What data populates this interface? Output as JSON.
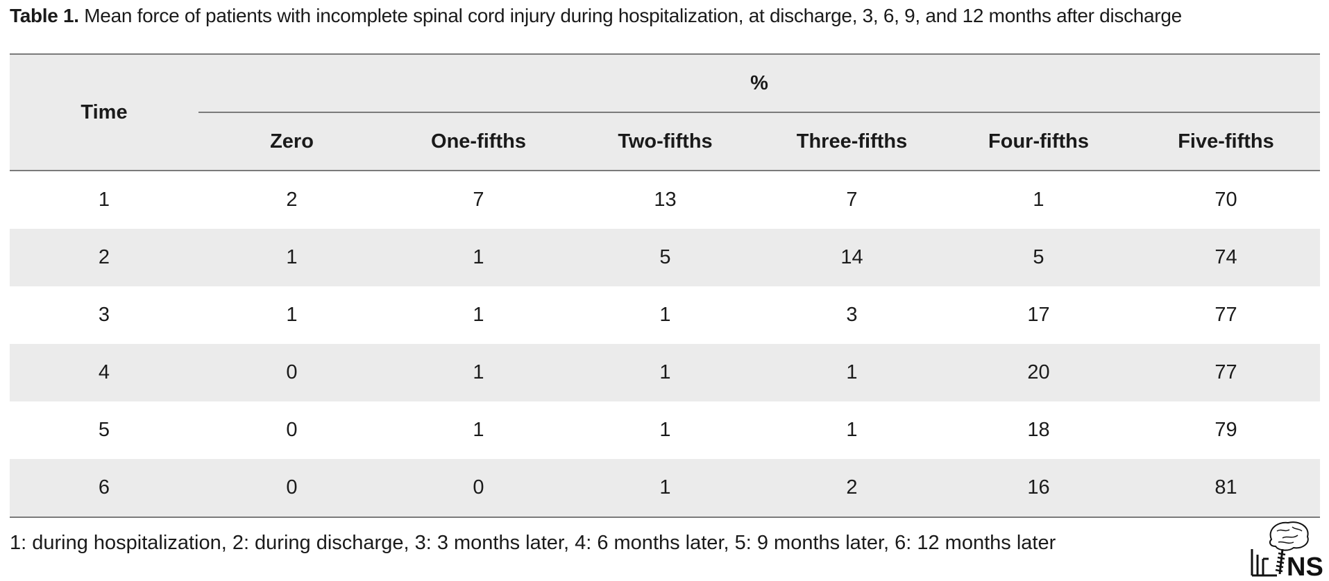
{
  "caption": {
    "label": "Table 1.",
    "text": " Mean force of patients with incomplete spinal cord injury during hospitalization, at discharge, 3, 6, 9, and 12 months after discharge"
  },
  "table": {
    "time_header": "Time",
    "group_header": "%",
    "columns": [
      "Zero",
      "One-fifths",
      "Two-fifths",
      "Three-fifths",
      "Four-fifths",
      "Five-fifths"
    ],
    "rows": [
      {
        "time": "1",
        "values": [
          "2",
          "7",
          "13",
          "7",
          "1",
          "70"
        ]
      },
      {
        "time": "2",
        "values": [
          "1",
          "1",
          "5",
          "14",
          "5",
          "74"
        ]
      },
      {
        "time": "3",
        "values": [
          "1",
          "1",
          "1",
          "3",
          "17",
          "77"
        ]
      },
      {
        "time": "4",
        "values": [
          "0",
          "1",
          "1",
          "1",
          "20",
          "77"
        ]
      },
      {
        "time": "5",
        "values": [
          "0",
          "1",
          "1",
          "1",
          "18",
          "79"
        ]
      },
      {
        "time": "6",
        "values": [
          "0",
          "0",
          "1",
          "2",
          "16",
          "81"
        ]
      }
    ]
  },
  "footnote": "1: during hospitalization, 2: during discharge, 3: 3 months later, 4: 6 months later, 5: 9 months later, 6: 12 months later",
  "logo": {
    "text": "NS",
    "icon": "brain-spine-logo"
  }
}
